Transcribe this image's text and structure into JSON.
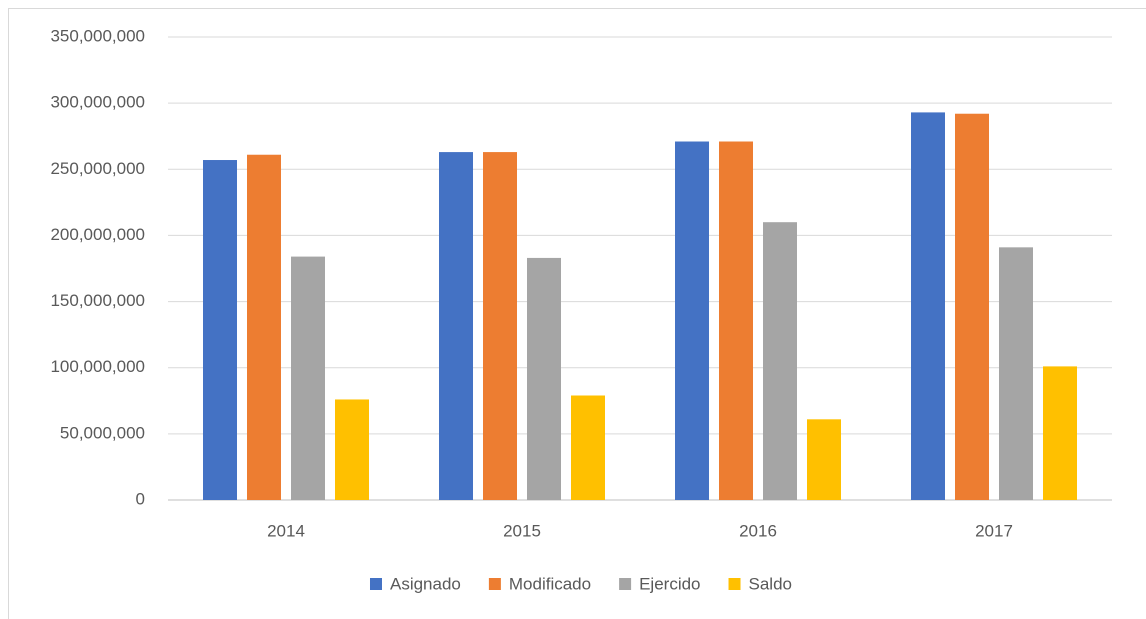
{
  "chart_data": {
    "type": "bar",
    "categories": [
      "2014",
      "2015",
      "2016",
      "2017"
    ],
    "series": [
      {
        "name": "Asignado",
        "color": "#4472c4",
        "values": [
          257000000,
          263000000,
          271000000,
          293000000
        ]
      },
      {
        "name": "Modificado",
        "color": "#ed7d31",
        "values": [
          261000000,
          263000000,
          271000000,
          292000000
        ]
      },
      {
        "name": "Ejercido",
        "color": "#a5a5a5",
        "values": [
          184000000,
          183000000,
          210000000,
          191000000
        ]
      },
      {
        "name": "Saldo",
        "color": "#ffc000",
        "values": [
          76000000,
          79000000,
          61000000,
          101000000
        ]
      }
    ],
    "ylim": [
      0,
      350000000
    ],
    "yticks": [
      0,
      {
        "value": 50000000,
        "label": "50,000,000"
      },
      {
        "value": 100000000,
        "label": "100,000,000"
      },
      {
        "value": 150000000,
        "label": "150,000,000"
      },
      {
        "value": 200000000,
        "label": "200,000,000"
      },
      {
        "value": 250000000,
        "label": "250,000,000"
      },
      {
        "value": 300000000,
        "label": "300,000,000"
      },
      {
        "value": 350000000,
        "label": "350,000,000"
      }
    ],
    "grid": true,
    "legend": "bottom"
  }
}
